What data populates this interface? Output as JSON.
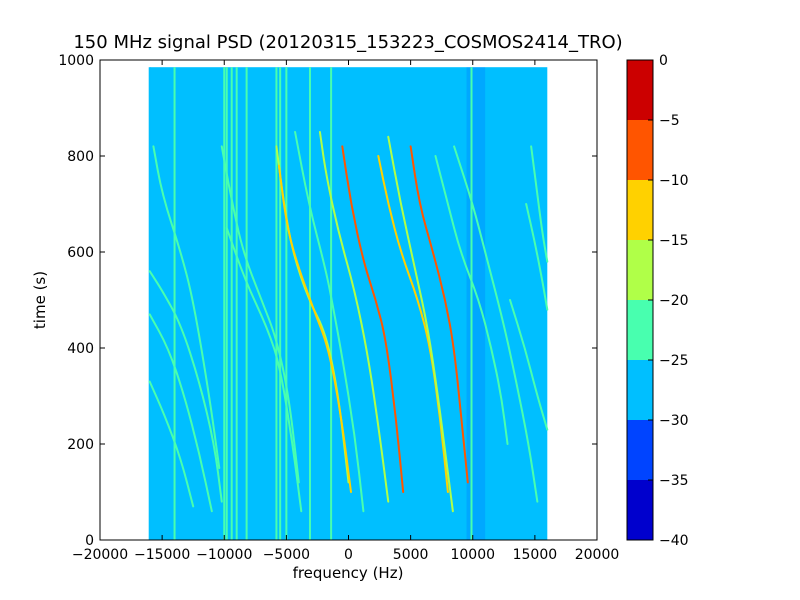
{
  "chart_data": {
    "type": "heatmap",
    "title": "150 MHz signal PSD (20120315_153223_COSMOS2414_TRO)",
    "xlabel": "frequency (Hz)",
    "ylabel": "time (s)",
    "xlim": [
      -20000,
      20000
    ],
    "ylim": [
      0,
      1000
    ],
    "x_ticks": [
      -20000,
      -15000,
      -10000,
      -5000,
      0,
      5000,
      10000,
      15000,
      20000
    ],
    "y_ticks": [
      0,
      200,
      400,
      600,
      800,
      1000
    ],
    "data_extent": {
      "x": [
        -16000,
        16000
      ],
      "y": [
        0,
        985
      ]
    },
    "background_level": -28,
    "colorbar": {
      "levels": [
        -40,
        -35,
        -30,
        -25,
        -20,
        -15,
        -10,
        -5,
        0
      ],
      "tick_labels": [
        "−40",
        "−35",
        "−30",
        "−25",
        "−20",
        "−15",
        "−10",
        "−5",
        "0"
      ],
      "colors": [
        "#0000cd",
        "#0044ff",
        "#00bfff",
        "#48ffaf",
        "#b0ff48",
        "#ffd100",
        "#ff5500",
        "#cc0000"
      ]
    },
    "vertical_lines": [
      {
        "x": -16000,
        "level": -27
      },
      {
        "x": -14000,
        "level": -24
      },
      {
        "x": -10000,
        "level": -20
      },
      {
        "x": -9800,
        "level": -23
      },
      {
        "x": -9400,
        "level": -22
      },
      {
        "x": -9000,
        "level": -22
      },
      {
        "x": -8200,
        "level": -23
      },
      {
        "x": -5800,
        "level": -22
      },
      {
        "x": -5500,
        "level": -21
      },
      {
        "x": -5000,
        "level": -21
      },
      {
        "x": -3100,
        "level": -23
      },
      {
        "x": -1400,
        "level": -22
      },
      {
        "x": 9900,
        "level": -24
      }
    ],
    "noise_bands": [
      {
        "x_min": 9500,
        "x_max": 11000,
        "y_min": 0,
        "y_max": 985,
        "level": -34
      }
    ],
    "traces": [
      {
        "level": -24,
        "points": [
          [
            -15700,
            820
          ],
          [
            -15000,
            720
          ],
          [
            -13500,
            600
          ],
          [
            -12500,
            500
          ],
          [
            -11200,
            300
          ],
          [
            -10400,
            150
          ]
        ]
      },
      {
        "level": -22,
        "points": [
          [
            -16000,
            560
          ],
          [
            -15000,
            520
          ],
          [
            -13500,
            450
          ],
          [
            -12000,
            330
          ],
          [
            -10800,
            200
          ],
          [
            -10200,
            80
          ]
        ]
      },
      {
        "level": -23,
        "points": [
          [
            -16000,
            470
          ],
          [
            -14500,
            400
          ],
          [
            -13200,
            300
          ],
          [
            -12000,
            180
          ],
          [
            -11000,
            60
          ]
        ]
      },
      {
        "level": -23,
        "points": [
          [
            -16000,
            330
          ],
          [
            -14800,
            260
          ],
          [
            -13500,
            170
          ],
          [
            -12500,
            70
          ]
        ]
      },
      {
        "level": -22,
        "points": [
          [
            -10200,
            820
          ],
          [
            -9500,
            720
          ],
          [
            -8500,
            600
          ],
          [
            -7000,
            500
          ],
          [
            -5800,
            420
          ],
          [
            -4800,
            300
          ],
          [
            -4000,
            120
          ]
        ]
      },
      {
        "level": -22,
        "points": [
          [
            -9800,
            650
          ],
          [
            -8300,
            540
          ],
          [
            -6500,
            440
          ],
          [
            -5500,
            360
          ],
          [
            -4500,
            200
          ],
          [
            -3800,
            60
          ]
        ]
      },
      {
        "level": -18,
        "points": [
          [
            -5800,
            820
          ],
          [
            -5200,
            700
          ],
          [
            -4500,
            600
          ],
          [
            -3200,
            500
          ],
          [
            -1800,
            430
          ],
          [
            -800,
            300
          ],
          [
            0,
            120
          ]
        ]
      },
      {
        "level": -10,
        "points": [
          [
            -5600,
            780
          ],
          [
            -5000,
            660
          ],
          [
            -4200,
            580
          ],
          [
            -2800,
            480
          ],
          [
            -1600,
            400
          ],
          [
            -600,
            260
          ],
          [
            200,
            100
          ]
        ]
      },
      {
        "level": -20,
        "points": [
          [
            -4300,
            850
          ],
          [
            -3200,
            700
          ],
          [
            -1800,
            560
          ],
          [
            -1200,
            480
          ],
          [
            -500,
            380
          ],
          [
            500,
            220
          ],
          [
            1200,
            60
          ]
        ]
      },
      {
        "level": -8,
        "points": [
          [
            -500,
            820
          ],
          [
            200,
            700
          ],
          [
            1200,
            580
          ],
          [
            2200,
            500
          ],
          [
            3000,
            420
          ],
          [
            3800,
            260
          ],
          [
            4400,
            100
          ]
        ]
      },
      {
        "level": -16,
        "points": [
          [
            -2300,
            850
          ],
          [
            -1800,
            760
          ],
          [
            -800,
            640
          ],
          [
            500,
            520
          ],
          [
            1600,
            380
          ],
          [
            2500,
            220
          ],
          [
            3200,
            80
          ]
        ]
      },
      {
        "level": -10,
        "points": [
          [
            2400,
            800
          ],
          [
            3200,
            700
          ],
          [
            4200,
            600
          ],
          [
            5600,
            500
          ],
          [
            6600,
            400
          ],
          [
            7400,
            250
          ],
          [
            8000,
            100
          ]
        ]
      },
      {
        "level": -8,
        "points": [
          [
            5000,
            820
          ],
          [
            5700,
            700
          ],
          [
            6800,
            600
          ],
          [
            7800,
            500
          ],
          [
            8500,
            400
          ],
          [
            9100,
            250
          ],
          [
            9600,
            120
          ]
        ]
      },
      {
        "level": -18,
        "points": [
          [
            3200,
            840
          ],
          [
            4200,
            700
          ],
          [
            5400,
            560
          ],
          [
            6400,
            440
          ],
          [
            7200,
            300
          ],
          [
            7800,
            180
          ],
          [
            8400,
            60
          ]
        ]
      },
      {
        "level": -20,
        "points": [
          [
            7000,
            800
          ],
          [
            8000,
            700
          ],
          [
            9000,
            600
          ],
          [
            10500,
            500
          ],
          [
            11500,
            400
          ],
          [
            12300,
            300
          ],
          [
            12800,
            200
          ]
        ]
      },
      {
        "level": -22,
        "points": [
          [
            8500,
            820
          ],
          [
            10000,
            700
          ],
          [
            11000,
            600
          ],
          [
            12500,
            450
          ],
          [
            13500,
            330
          ],
          [
            14500,
            200
          ],
          [
            15200,
            80
          ]
        ]
      },
      {
        "level": -22,
        "points": [
          [
            14700,
            820
          ],
          [
            15200,
            720
          ],
          [
            15600,
            640
          ],
          [
            16000,
            580
          ]
        ]
      },
      {
        "level": -22,
        "points": [
          [
            14300,
            700
          ],
          [
            15000,
            620
          ],
          [
            15600,
            540
          ],
          [
            16000,
            480
          ]
        ]
      },
      {
        "level": -23,
        "points": [
          [
            13000,
            500
          ],
          [
            14200,
            400
          ],
          [
            15200,
            300
          ],
          [
            16000,
            230
          ]
        ]
      }
    ]
  }
}
